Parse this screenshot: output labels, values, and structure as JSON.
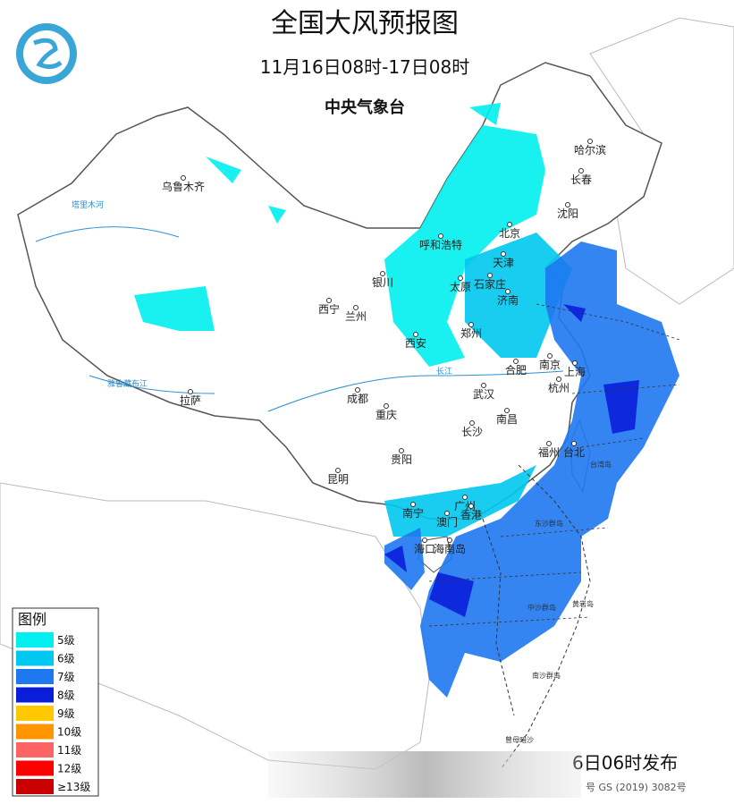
{
  "header": {
    "title": "全国大风预报图",
    "subtitle": "11月16日08时-17日08时",
    "agency": "中央气象台"
  },
  "cities": [
    "哈尔滨",
    "长春",
    "沈阳",
    "乌鲁木齐",
    "呼和浩特",
    "北京",
    "天津",
    "银川",
    "太原",
    "石家庄",
    "济南",
    "西宁",
    "兰州",
    "郑州",
    "西安",
    "合肥",
    "南京",
    "上海",
    "杭州",
    "武汉",
    "成都",
    "重庆",
    "南昌",
    "拉萨",
    "长沙",
    "福州",
    "台北",
    "贵阳",
    "昆明",
    "南宁",
    "广州",
    "澳门",
    "香港",
    "海口",
    "海南岛"
  ],
  "places": [
    "台湾岛",
    "东沙群岛",
    "中沙群岛",
    "黄岩岛",
    "南沙群岛",
    "曾母暗沙"
  ],
  "rivers": [
    "塔里木河",
    "雅鲁藏布江",
    "长江"
  ],
  "legend": {
    "title": "图例",
    "items": [
      {
        "label": "5级",
        "color": "#00f0f0"
      },
      {
        "label": "6级",
        "color": "#00c8f0"
      },
      {
        "label": "7级",
        "color": "#1e78f0"
      },
      {
        "label": "8级",
        "color": "#0a1eda"
      },
      {
        "label": "9级",
        "color": "#ffc800"
      },
      {
        "label": "10级",
        "color": "#ff9600"
      },
      {
        "label": "11级",
        "color": "#ff6464"
      },
      {
        "label": "12级",
        "color": "#ff0000"
      },
      {
        "label": "≥13级",
        "color": "#c80000"
      }
    ]
  },
  "footer": {
    "issued": "6日06时发布",
    "approval": "号  GS (2019) 3082号"
  }
}
